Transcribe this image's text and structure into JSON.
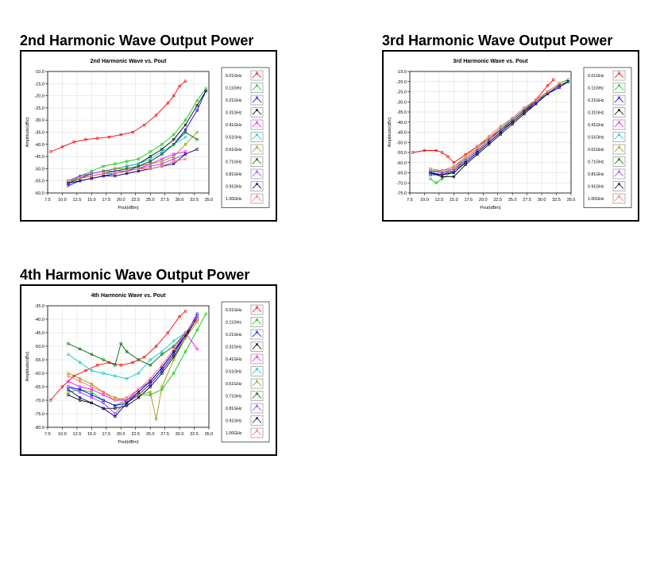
{
  "sections": [
    {
      "heading": "2nd Harmonic Wave Output Power"
    },
    {
      "heading": "3rd Harmonic Wave Output Power"
    },
    {
      "heading": "4th Harmonic Wave Output Power"
    }
  ],
  "legend_colors": [
    "#ff0000",
    "#00cc00",
    "#0000ff",
    "#000000",
    "#ff00ff",
    "#00cccc",
    "#999900",
    "#006600",
    "#9933ff",
    "#000066",
    "#ff6666"
  ],
  "chart_data": [
    {
      "type": "line",
      "title": "2nd Harmonic Wave vs. Pout",
      "xlabel": "Pout(dBm)",
      "ylabel": "Amplitude(dBc)",
      "xlim": [
        7.5,
        35.0
      ],
      "ylim": [
        -60.0,
        -10.0
      ],
      "xticks": [
        "7.5",
        "10.0",
        "12.5",
        "15.0",
        "17.5",
        "20.0",
        "22.5",
        "25.0",
        "27.5",
        "30.0",
        "32.5",
        "35.0"
      ],
      "yticks": [
        "-10.0",
        "-15.0",
        "-20.0",
        "-25.0",
        "-30.0",
        "-35.0",
        "-40.0",
        "-45.0",
        "-50.0",
        "-55.0",
        "-60.0"
      ],
      "grid": true,
      "legend": "right",
      "series": [
        {
          "name": "0.01GHz",
          "x": [
            8,
            10,
            12,
            14,
            16,
            18,
            20,
            22,
            24,
            26,
            28,
            29,
            30,
            31
          ],
          "y": [
            -43,
            -41,
            -39,
            -38,
            -37.5,
            -37,
            -36,
            -35,
            -32,
            -28,
            -23,
            -20,
            -16,
            -14
          ]
        },
        {
          "name": "0.11GHz",
          "x": [
            11,
            13,
            15,
            17,
            19,
            21,
            23,
            25,
            27,
            29,
            31,
            33,
            34.5
          ],
          "y": [
            -56,
            -53,
            -51,
            -49,
            -48,
            -47,
            -46,
            -43,
            -40,
            -36,
            -30,
            -22,
            -17
          ]
        },
        {
          "name": "0.21GHz",
          "x": [
            11,
            13,
            15,
            17,
            19,
            21,
            23,
            25,
            27,
            29,
            31,
            33,
            34.5
          ],
          "y": [
            -57,
            -55,
            -54,
            -53,
            -52,
            -51,
            -49,
            -47,
            -44,
            -40,
            -34,
            -26,
            -18
          ]
        },
        {
          "name": "0.31GHz",
          "x": [
            11,
            13,
            15,
            17,
            19,
            21,
            23,
            25,
            27,
            29,
            31,
            33,
            34.5
          ],
          "y": [
            -56,
            -54,
            -52,
            -51,
            -50,
            -49,
            -48,
            -45,
            -42,
            -38,
            -32,
            -24,
            -18
          ]
        },
        {
          "name": "0.41GHz",
          "x": [
            11,
            13,
            15,
            17,
            19,
            21,
            23,
            25,
            27,
            29,
            31
          ],
          "y": [
            -56,
            -54,
            -53,
            -52,
            -52,
            -51,
            -50,
            -48,
            -46,
            -44,
            -43
          ]
        },
        {
          "name": "0.51GHz",
          "x": [
            11,
            13,
            15,
            17,
            19,
            21,
            23,
            25,
            27,
            29,
            31
          ],
          "y": [
            -55,
            -53,
            -52,
            -51,
            -50,
            -49,
            -48,
            -46,
            -43,
            -40,
            -37
          ]
        },
        {
          "name": "0.61GHz",
          "x": [
            11,
            13,
            15,
            17,
            19,
            21,
            23,
            25,
            27,
            29,
            31,
            33
          ],
          "y": [
            -55,
            -53,
            -52,
            -51,
            -50,
            -50,
            -49,
            -48,
            -47,
            -45,
            -40,
            -35
          ]
        },
        {
          "name": "0.71GHz",
          "x": [
            11,
            13,
            15,
            17,
            19,
            21,
            23,
            25,
            27,
            29,
            31,
            33
          ],
          "y": [
            -56,
            -54,
            -53,
            -52,
            -51,
            -50,
            -49,
            -47,
            -44,
            -40,
            -35,
            -38
          ]
        },
        {
          "name": "0.81GHz",
          "x": [
            11,
            13,
            15,
            17,
            19,
            21,
            23,
            25,
            27,
            29,
            31
          ],
          "y": [
            -55,
            -53,
            -52,
            -51,
            -51,
            -51,
            -50,
            -49,
            -48,
            -46,
            -44
          ]
        },
        {
          "name": "0.91GHz",
          "x": [
            11,
            13,
            15,
            17,
            19,
            21,
            23,
            25,
            27,
            29,
            31,
            33
          ],
          "y": [
            -56,
            -55,
            -54,
            -53,
            -53,
            -52,
            -51,
            -50,
            -49,
            -48,
            -44,
            -42
          ]
        },
        {
          "name": "1.00GHz",
          "x": [
            11,
            13,
            15,
            17,
            19,
            21,
            23,
            25,
            27,
            29,
            31
          ],
          "y": [
            -55,
            -54,
            -53,
            -52,
            -52,
            -51,
            -50,
            -50,
            -49,
            -47,
            -46
          ]
        }
      ]
    },
    {
      "type": "line",
      "title": "3rd Harmonic Wave vs. Pout",
      "xlabel": "Pout(dBm)",
      "ylabel": "Amplitude(dBc)",
      "xlim": [
        7.5,
        35.0
      ],
      "ylim": [
        -75.0,
        -15.0
      ],
      "xticks": [
        "7.5",
        "10.0",
        "12.5",
        "15.0",
        "17.5",
        "20.0",
        "22.5",
        "25.0",
        "27.5",
        "30.0",
        "32.5",
        "35.0"
      ],
      "yticks": [
        "-15.0",
        "-20.0",
        "-25.0",
        "-30.0",
        "-35.0",
        "-40.0",
        "-45.0",
        "-50.0",
        "-55.0",
        "-60.0",
        "-65.0",
        "-70.0",
        "-75.0"
      ],
      "grid": true,
      "legend": "right",
      "series": [
        {
          "name": "0.01GHz",
          "x": [
            8,
            10,
            12,
            13,
            14,
            15,
            17,
            19,
            21,
            23,
            25,
            27,
            29,
            31,
            32
          ],
          "y": [
            -55,
            -54,
            -54,
            -55,
            -57,
            -60,
            -56,
            -52,
            -48,
            -44,
            -40,
            -35,
            -29,
            -22,
            -19
          ]
        },
        {
          "name": "0.11GHz",
          "x": [
            11,
            12,
            13,
            15,
            17,
            19,
            21,
            23,
            25,
            27,
            29,
            31,
            33,
            34.5
          ],
          "y": [
            -68,
            -70,
            -68,
            -64,
            -60,
            -55,
            -50,
            -45,
            -40,
            -35,
            -30,
            -25,
            -21,
            -19
          ]
        },
        {
          "name": "0.21GHz",
          "x": [
            11,
            13,
            15,
            17,
            19,
            21,
            23,
            25,
            27,
            29,
            31,
            33,
            34.5
          ],
          "y": [
            -66,
            -66,
            -65,
            -60,
            -55,
            -50,
            -45,
            -40,
            -35,
            -30,
            -26,
            -23,
            -20
          ]
        },
        {
          "name": "0.31GHz",
          "x": [
            11,
            13,
            15,
            17,
            19,
            21,
            23,
            25,
            27,
            29,
            31,
            33,
            34.5
          ],
          "y": [
            -65,
            -67,
            -67,
            -61,
            -56,
            -51,
            -46,
            -41,
            -36,
            -31,
            -26,
            -22,
            -20
          ]
        },
        {
          "name": "0.41GHz",
          "x": [
            11,
            13,
            15,
            17,
            19,
            21,
            23,
            25,
            27,
            29,
            31,
            33
          ],
          "y": [
            -64,
            -65,
            -63,
            -59,
            -54,
            -49,
            -44,
            -39,
            -34,
            -29,
            -25,
            -21
          ]
        },
        {
          "name": "0.51GHz",
          "x": [
            11,
            13,
            15,
            17,
            19,
            21,
            23,
            25,
            27,
            29,
            31,
            33
          ],
          "y": [
            -65,
            -64,
            -62,
            -58,
            -53,
            -48,
            -43,
            -38,
            -33,
            -29,
            -25,
            -21
          ]
        },
        {
          "name": "0.61GHz",
          "x": [
            11,
            13,
            15,
            17,
            19,
            21,
            23,
            25,
            27,
            29,
            31,
            33
          ],
          "y": [
            -64,
            -64,
            -63,
            -58,
            -53,
            -48,
            -43,
            -39,
            -34,
            -29,
            -25,
            -21
          ]
        },
        {
          "name": "0.71GHz",
          "x": [
            11,
            13,
            15,
            17,
            19,
            21,
            23,
            25,
            27,
            29,
            31,
            33
          ],
          "y": [
            -65,
            -66,
            -64,
            -59,
            -54,
            -49,
            -44,
            -39,
            -34,
            -30,
            -26,
            -22
          ]
        },
        {
          "name": "0.81GHz",
          "x": [
            11,
            13,
            15,
            17,
            19,
            21,
            23,
            25,
            27,
            29,
            31,
            33
          ],
          "y": [
            -64,
            -65,
            -64,
            -59,
            -54,
            -49,
            -44,
            -40,
            -35,
            -30,
            -26,
            -22
          ]
        },
        {
          "name": "0.91GHz",
          "x": [
            11,
            13,
            15,
            17,
            19,
            21,
            23,
            25,
            27,
            29,
            31,
            33
          ],
          "y": [
            -65,
            -66,
            -65,
            -60,
            -55,
            -50,
            -45,
            -40,
            -35,
            -31,
            -26,
            -22
          ]
        },
        {
          "name": "1.00GHz",
          "x": [
            11,
            13,
            15,
            17,
            19,
            21,
            23,
            25,
            27,
            29,
            31,
            33
          ],
          "y": [
            -63,
            -64,
            -62,
            -57,
            -52,
            -47,
            -42,
            -38,
            -33,
            -29,
            -25,
            -21
          ]
        }
      ]
    },
    {
      "type": "line",
      "title": "4th Harmonic Wave vs. Pout",
      "xlabel": "Pout(dBm)",
      "ylabel": "Amplitude(dBc)",
      "xlim": [
        7.5,
        35.0
      ],
      "ylim": [
        -80.0,
        -35.0
      ],
      "xticks": [
        "7.5",
        "10.0",
        "12.5",
        "15.0",
        "17.5",
        "20.0",
        "22.5",
        "25.0",
        "27.5",
        "30.0",
        "32.5",
        "35.0"
      ],
      "yticks": [
        "-35.0",
        "-40.0",
        "-45.0",
        "-50.0",
        "-55.0",
        "-60.0",
        "-65.0",
        "-70.0",
        "-75.0",
        "-80.0"
      ],
      "grid": true,
      "legend": "right",
      "series": [
        {
          "name": "0.01GHz",
          "x": [
            8,
            10,
            12,
            14,
            16,
            18,
            20,
            22,
            24,
            26,
            28,
            30,
            31
          ],
          "y": [
            -70,
            -65,
            -61,
            -59,
            -57,
            -56,
            -57,
            -56,
            -54,
            -50,
            -45,
            -39,
            -37
          ]
        },
        {
          "name": "0.11GHz",
          "x": [
            11,
            13,
            15,
            17,
            19,
            21,
            23,
            25,
            27,
            29,
            31,
            33,
            34.5
          ],
          "y": [
            -67,
            -66,
            -67,
            -70,
            -72,
            -70,
            -68,
            -68,
            -66,
            -60,
            -52,
            -44,
            -38
          ]
        },
        {
          "name": "0.21GHz",
          "x": [
            11,
            13,
            15,
            17,
            19,
            21,
            23,
            25,
            27,
            29,
            31,
            33
          ],
          "y": [
            -65,
            -66,
            -68,
            -70,
            -72,
            -71,
            -68,
            -64,
            -59,
            -53,
            -46,
            -38
          ]
        },
        {
          "name": "0.31GHz",
          "x": [
            11,
            13,
            15,
            17,
            19,
            21,
            23,
            25,
            27,
            29,
            31,
            33
          ],
          "y": [
            -68,
            -70,
            -71,
            -73,
            -73,
            -72,
            -69,
            -65,
            -60,
            -54,
            -47,
            -39
          ]
        },
        {
          "name": "0.41GHz",
          "x": [
            11,
            13,
            15,
            17,
            19,
            21,
            23,
            25,
            27,
            29,
            31,
            33
          ],
          "y": [
            -63,
            -65,
            -66,
            -68,
            -70,
            -70,
            -67,
            -63,
            -58,
            -52,
            -45,
            -51
          ]
        },
        {
          "name": "0.51GHz",
          "x": [
            11,
            13,
            15,
            17,
            19,
            21,
            23,
            25,
            27,
            29,
            31,
            33
          ],
          "y": [
            -53,
            -56,
            -59,
            -60,
            -61,
            -62,
            -60,
            -55,
            -52,
            -48,
            -45,
            -40
          ]
        },
        {
          "name": "0.61GHz",
          "x": [
            11,
            13,
            15,
            17,
            19,
            21,
            23,
            25,
            26,
            27,
            29,
            31,
            33
          ],
          "y": [
            -60,
            -62,
            -64,
            -67,
            -69,
            -70,
            -68,
            -67,
            -77,
            -65,
            -55,
            -47,
            -41
          ]
        },
        {
          "name": "0.71GHz",
          "x": [
            11,
            13,
            15,
            17,
            19,
            20,
            21,
            23,
            25,
            27,
            29,
            31,
            33
          ],
          "y": [
            -49,
            -51,
            -53,
            -55,
            -57,
            -49,
            -52,
            -55,
            -57,
            -53,
            -50,
            -45,
            -40
          ]
        },
        {
          "name": "0.81GHz",
          "x": [
            11,
            13,
            15,
            17,
            19,
            21,
            23,
            25,
            27,
            29,
            31,
            33
          ],
          "y": [
            -65,
            -67,
            -69,
            -71,
            -75,
            -70,
            -66,
            -63,
            -58,
            -52,
            -45,
            -39
          ]
        },
        {
          "name": "0.91GHz",
          "x": [
            11,
            13,
            15,
            17,
            19,
            21,
            23,
            25,
            27,
            29,
            31,
            33
          ],
          "y": [
            -66,
            -69,
            -71,
            -73,
            -76,
            -71,
            -67,
            -63,
            -58,
            -52,
            -46,
            -40
          ]
        },
        {
          "name": "1.00GHz",
          "x": [
            11,
            13,
            15,
            17,
            19,
            21,
            23,
            25,
            27,
            29,
            31,
            33
          ],
          "y": [
            -61,
            -63,
            -65,
            -67,
            -70,
            -69,
            -66,
            -62,
            -57,
            -51,
            -45,
            -40
          ]
        }
      ]
    }
  ]
}
